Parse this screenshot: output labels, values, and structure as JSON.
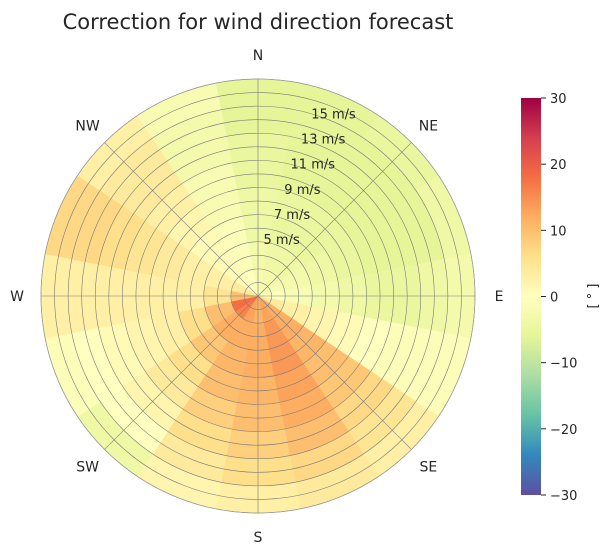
{
  "chart_data": {
    "type": "heatmap",
    "projection": "polar",
    "title": "Correction for wind direction forecast",
    "colorbar": {
      "label": "[ ° ]",
      "min": -30,
      "max": 30,
      "ticks": [
        "30",
        "20",
        "10",
        "0",
        "−10",
        "−20",
        "−30"
      ],
      "tick_values": [
        30,
        20,
        10,
        0,
        -10,
        -20,
        -30
      ],
      "colormap": "Spectral_r",
      "stops": [
        "#5e4fa2",
        "#3288bd",
        "#66c2a5",
        "#abdda4",
        "#e6f598",
        "#ffffbf",
        "#fee08b",
        "#fdae61",
        "#f46d43",
        "#d53e4f",
        "#9e0142"
      ]
    },
    "directions": [
      "N",
      "NE",
      "E",
      "SE",
      "S",
      "SW",
      "W",
      "NW"
    ],
    "direction_angles_deg": [
      0,
      45,
      90,
      135,
      180,
      225,
      270,
      315
    ],
    "radial_axis": {
      "unit": "m/s",
      "range": [
        0,
        16
      ],
      "rings": [
        1,
        2,
        3,
        4,
        5,
        6,
        7,
        8,
        9,
        10,
        11,
        12,
        13,
        14,
        15,
        16
      ],
      "labeled_rings": [
        5,
        7,
        9,
        11,
        13,
        15
      ],
      "ring_labels": [
        "5 m/s",
        "7 m/s",
        "9 m/s",
        "11 m/s",
        "13 m/s",
        "15 m/s"
      ]
    },
    "sectors_deg": [
      0,
      22.5,
      45,
      67.5,
      90,
      112.5,
      135,
      157.5,
      180,
      202.5,
      225,
      247.5,
      270,
      292.5,
      315,
      337.5
    ],
    "speed_bins": [
      "0-2",
      "2-4",
      "4-6",
      "6-8",
      "8-10",
      "10-12",
      "12-14",
      "14-16"
    ],
    "values": [
      [
        -2,
        -3,
        -4,
        -4,
        -5,
        -5,
        -6,
        -6
      ],
      [
        -3,
        -4,
        -5,
        -5,
        -6,
        -6,
        -6,
        -6
      ],
      [
        -3,
        -4,
        -5,
        -5,
        -6,
        -6,
        -6,
        -5
      ],
      [
        -2,
        -3,
        -4,
        -5,
        -6,
        -6,
        -6,
        -4
      ],
      [
        0,
        -2,
        -3,
        -4,
        -5,
        -5,
        -4,
        -3
      ],
      [
        4,
        3,
        2,
        1,
        0,
        -1,
        -1,
        -1
      ],
      [
        12,
        12,
        11,
        10,
        9,
        7,
        5,
        3
      ],
      [
        13,
        14,
        14,
        13,
        12,
        10,
        7,
        4
      ],
      [
        11,
        12,
        12,
        11,
        10,
        8,
        6,
        3
      ],
      [
        13,
        12,
        11,
        10,
        8,
        6,
        4,
        2
      ],
      [
        16,
        12,
        9,
        6,
        4,
        2,
        0,
        -4
      ],
      [
        18,
        10,
        6,
        3,
        2,
        1,
        0,
        -1
      ],
      [
        10,
        5,
        3,
        3,
        3,
        3,
        3,
        3
      ],
      [
        4,
        3,
        3,
        4,
        5,
        6,
        7,
        7
      ],
      [
        1,
        1,
        1,
        2,
        3,
        4,
        4,
        3
      ],
      [
        0,
        -1,
        -1,
        -2,
        -2,
        -3,
        -3,
        -2
      ]
    ]
  }
}
